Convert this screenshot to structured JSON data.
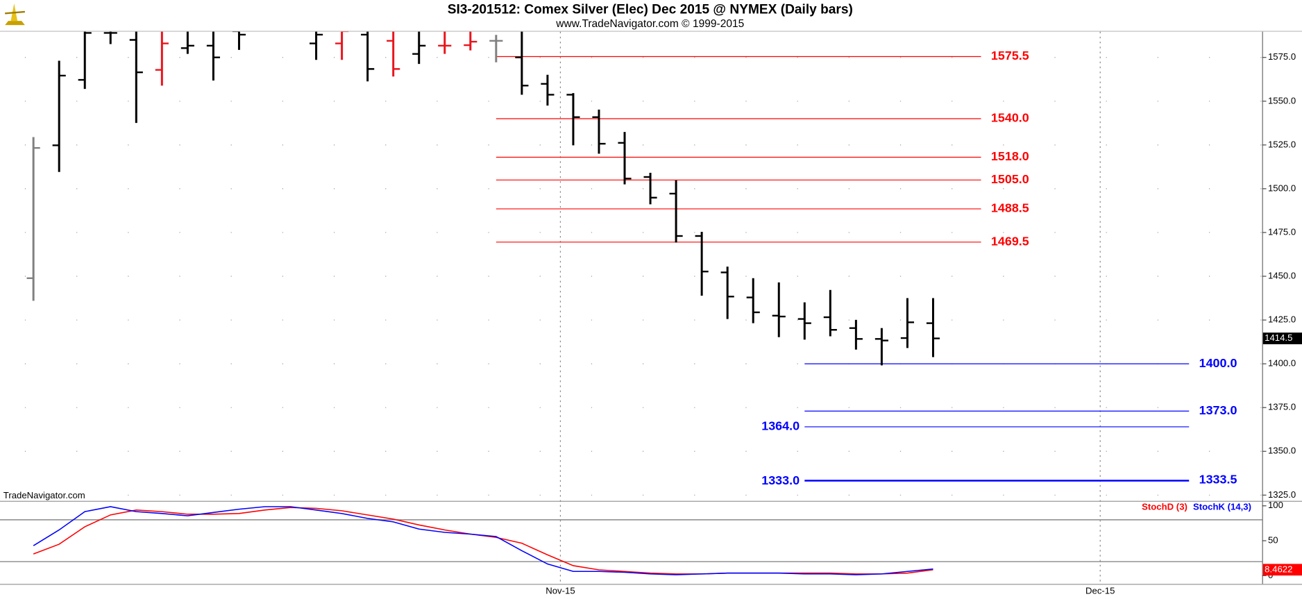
{
  "chart_data": {
    "type": "ohlc",
    "title": "SI3-201512:  Comex Silver (Elec) Dec 2015 @ NYMEX  (Daily bars)",
    "subtitle": "www.TradeNavigator.com © 1999-2015",
    "watermark": "TradeNavigator.com",
    "categories": [
      null,
      null,
      null,
      null,
      null,
      null,
      null,
      null,
      null,
      null,
      null,
      null,
      null,
      null,
      null,
      null,
      null,
      null,
      null,
      null,
      null,
      null,
      null,
      null,
      null,
      null,
      null,
      null,
      null,
      null,
      null,
      null,
      null,
      null,
      null,
      null
    ],
    "open": [
      1448.9,
      1524.8,
      1562.2,
      1589,
      1585,
      1567.9,
      1580.3,
      1581.7,
      1590,
      null,
      null,
      1583,
      1583,
      1588,
      1584.5,
      1577,
      1581.7,
      1582,
      1584.5,
      1575,
      1559.9,
      1553.7,
      1540.9,
      1526.2,
      1506.7,
      1497.2,
      1473,
      1452.2,
      1437.9,
      1427.5,
      1425.6,
      1426.6,
      1420.4,
      1414.2,
      1414.7,
      1423.2
    ],
    "high": [
      1529.5,
      1573.1,
      1592,
      1592,
      1592,
      1592,
      1592,
      1592,
      1592,
      null,
      null,
      1592,
      1592,
      1592,
      1592,
      1592,
      1590,
      1591,
      1587.9,
      1592,
      1565.1,
      1554.6,
      1545.2,
      1532.4,
      1509.1,
      1504.8,
      1475.4,
      1455.5,
      1448.9,
      1446.5,
      1435.1,
      1442.2,
      1425.1,
      1420.4,
      1437.5,
      1437.5
    ],
    "low": [
      1436,
      1509.6,
      1557,
      1582.6,
      1537.6,
      1558.9,
      1577,
      1561.8,
      1579.3,
      null,
      null,
      1573.6,
      1573.6,
      1561.3,
      1564.1,
      1571.3,
      1577,
      1579,
      1572.2,
      1553.7,
      1547.5,
      1524.8,
      1520,
      1502.5,
      1491.1,
      1469.3,
      1438.9,
      1425.6,
      1423.2,
      1415.2,
      1413.8,
      1415.7,
      1408.1,
      1399.1,
      1409,
      1403.8
    ],
    "close": [
      1523.3,
      1564.6,
      1589,
      1589,
      1566.5,
      1583,
      1581.7,
      1575,
      1588,
      null,
      null,
      1588,
      1590,
      1568.4,
      1568.4,
      1581.7,
      1581.7,
      1584,
      1584.5,
      1558.9,
      1553.7,
      1540.9,
      1525.7,
      1505.8,
      1494.9,
      1473,
      1452.7,
      1438.4,
      1429.4,
      1427,
      1423.2,
      1419.4,
      1414.2,
      1413.3,
      1423.7,
      1414.5
    ],
    "bar_colors": [
      "#808080",
      "#000000",
      "#000000",
      "#000000",
      "#000000",
      "#e8141c",
      "#000000",
      "#000000",
      "#000000",
      null,
      null,
      "#000000",
      "#e8141c",
      "#000000",
      "#e8141c",
      "#000000",
      "#e8141c",
      "#e8141c",
      "#808080",
      "#000000",
      "#000000",
      "#000000",
      "#000000",
      "#000000",
      "#000000",
      "#000000",
      "#000000",
      "#000000",
      "#000000",
      "#000000",
      "#000000",
      "#000000",
      "#000000",
      "#000000",
      "#000000",
      "#000000"
    ],
    "ylim": [
      1321.7,
      1589.7
    ],
    "yticks": [
      {
        "value": 1325,
        "label": "1325.0"
      },
      {
        "value": 1350,
        "label": "1350.0"
      },
      {
        "value": 1375,
        "label": "1375.0"
      },
      {
        "value": 1400,
        "label": "1400.0"
      },
      {
        "value": 1425,
        "label": "1425.0"
      },
      {
        "value": 1450,
        "label": "1450.0"
      },
      {
        "value": 1475,
        "label": "1475.0"
      },
      {
        "value": 1500,
        "label": "1500.0"
      },
      {
        "value": 1525,
        "label": "1525.0"
      },
      {
        "value": 1550,
        "label": "1550.0"
      },
      {
        "value": 1575,
        "label": "1575.0"
      }
    ],
    "xlim": [
      -1.3,
      47.8
    ],
    "xticks": [
      {
        "value": 20.5,
        "label": "Nov-15"
      },
      {
        "value": 41.5,
        "label": "Dec-15"
      }
    ],
    "grid": true,
    "levels": [
      {
        "value": 1575.5,
        "label": "1575.5",
        "color": "#ff0000",
        "from": 18,
        "side": "right"
      },
      {
        "value": 1540,
        "label": "1540.0",
        "color": "#ff0000",
        "from": 18,
        "side": "right"
      },
      {
        "value": 1518,
        "label": "1518.0",
        "color": "#ff0000",
        "from": 18,
        "side": "right"
      },
      {
        "value": 1505,
        "label": "1505.0",
        "color": "#ff0000",
        "from": 18,
        "side": "right"
      },
      {
        "value": 1488.5,
        "label": "1488.5",
        "color": "#ff0000",
        "from": 18,
        "side": "right"
      },
      {
        "value": 1469.5,
        "label": "1469.5",
        "color": "#ff0000",
        "from": 18,
        "side": "right"
      },
      {
        "value": 1400,
        "label": "1400.0",
        "color": "#0000ff",
        "from": 30,
        "side": "right"
      },
      {
        "value": 1373,
        "label": "1373.0",
        "color": "#0000ff",
        "from": 30,
        "side": "right"
      },
      {
        "value": 1364,
        "label": "1364.0",
        "color": "#0000ff",
        "from": 30,
        "side": "left"
      },
      {
        "value": 1333,
        "label": "1333.0",
        "color": "#0000ff",
        "from": 30,
        "side": "left"
      },
      {
        "value": 1333.5,
        "label": "1333.5",
        "color": "#0000ff",
        "from": 30,
        "side": "right"
      }
    ],
    "indicator": {
      "type": "line",
      "ylim": [
        -11.9,
        107.1
      ],
      "yticks": [
        0,
        50,
        100
      ],
      "hlines": [
        20,
        80
      ],
      "series": [
        {
          "name": "StochD (3)",
          "color": "#ff0000",
          "values": [
            31,
            45,
            70,
            87,
            94,
            91.7,
            88,
            88,
            89,
            94,
            97.6,
            96.4,
            92.9,
            87,
            81,
            72.6,
            65.5,
            59.5,
            54.8,
            46.4,
            29.8,
            14.3,
            8.3,
            6,
            3.6,
            2.4,
            2.4,
            3.6,
            3.6,
            3.6,
            3.6,
            3.6,
            2.4,
            2.4,
            3.6,
            8.4622
          ]
        },
        {
          "name": "StochK (14,3)",
          "color": "#0000ff",
          "values": [
            42.9,
            65.5,
            91.7,
            98.8,
            91.7,
            89,
            85.7,
            90.5,
            95.2,
            98.8,
            98.8,
            94,
            89,
            82,
            77,
            66.7,
            62,
            59.5,
            56,
            35.7,
            16.7,
            6,
            6,
            4.8,
            2.4,
            1.2,
            2.4,
            3.6,
            3.6,
            3.6,
            2.4,
            2.4,
            1.2,
            2.4,
            6,
            9.5
          ]
        }
      ]
    }
  }
}
